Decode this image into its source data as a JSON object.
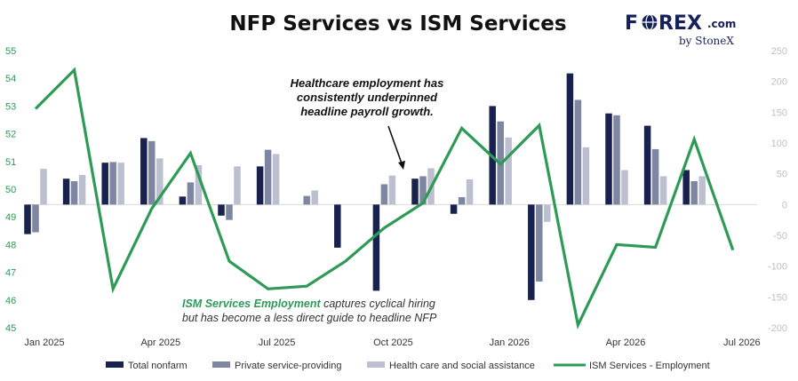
{
  "colors": {
    "total": "#19214f",
    "private": "#7f86a1",
    "health": "#bcbfcf",
    "ism": "#2e9a56",
    "left_axis": "#2e9a56",
    "right_axis": "#bfbfbf",
    "brand": "#16215c"
  },
  "brand": {
    "text_left": "F",
    "text_right": "REX",
    "com": ".com",
    "by": "by StoneX",
    "icon": "globe-icon"
  },
  "annotations": {
    "top": [
      "Healthcare employment has",
      "consistently underpinned",
      "headline payroll growth."
    ],
    "bottom_emphasis": "ISM Services Employment",
    "bottom_line1_rest": " captures cyclical hiring",
    "bottom_line2": "but has become a less direct guide to headline NFP"
  },
  "chart_data": {
    "type": "bar",
    "title": "NFP Services vs ISM Services",
    "x_tick_labels": [
      "Jan 2025",
      "Apr 2025",
      "Jul 2025",
      "Oct 2025",
      "Jan 2026",
      "Apr 2026",
      "Jul 2026"
    ],
    "categories": [
      "Jan 2025",
      "Feb 2025",
      "Mar 2025",
      "Apr 2025",
      "May 2025",
      "Jun 2025",
      "Jul 2025",
      "Aug 2025",
      "Sep 2025",
      "Oct 2025",
      "Nov 2025",
      "Dec 2025",
      "Jan 2026",
      "Feb 2026",
      "Mar 2026",
      "Apr 2026",
      "May 2026",
      "Jun 2026",
      "Jul 2026"
    ],
    "y_left": {
      "min": 45,
      "max": 55,
      "ticks": [
        45,
        46,
        47,
        48,
        49,
        50,
        51,
        52,
        53,
        54,
        55
      ]
    },
    "y_right": {
      "min": -200,
      "max": 250,
      "ticks": [
        -200,
        -150,
        -100,
        -50,
        0,
        50,
        100,
        150,
        200,
        250
      ]
    },
    "series": [
      {
        "name": "Total nonfarm",
        "type": "bar",
        "axis": "right",
        "values": [
          -48,
          42,
          68,
          108,
          13,
          -18,
          62,
          null,
          -70,
          -140,
          42,
          -15,
          160,
          -155,
          213,
          148,
          128,
          56,
          null
        ]
      },
      {
        "name": "Private service-providing",
        "type": "bar",
        "axis": "right",
        "values": [
          -45,
          38,
          69,
          103,
          36,
          -25,
          89,
          14,
          null,
          33,
          46,
          12,
          135,
          -125,
          170,
          145,
          90,
          38,
          null
        ]
      },
      {
        "name": "Health care and social assistance",
        "type": "bar",
        "axis": "right",
        "values": [
          58,
          48,
          68,
          75,
          64,
          62,
          82,
          23,
          null,
          47,
          59,
          41,
          109,
          -28,
          93,
          56,
          46,
          46,
          null
        ]
      },
      {
        "name": "ISM Services - Employment",
        "type": "line",
        "axis": "left",
        "values": [
          52.9,
          54.3,
          46.4,
          49.3,
          51.3,
          47.4,
          46.4,
          46.5,
          47.4,
          48.6,
          49.5,
          52.2,
          50.9,
          52.3,
          45.1,
          48.0,
          47.9,
          51.8,
          47.8
        ]
      }
    ],
    "legend_position": "bottom",
    "grid": false
  }
}
